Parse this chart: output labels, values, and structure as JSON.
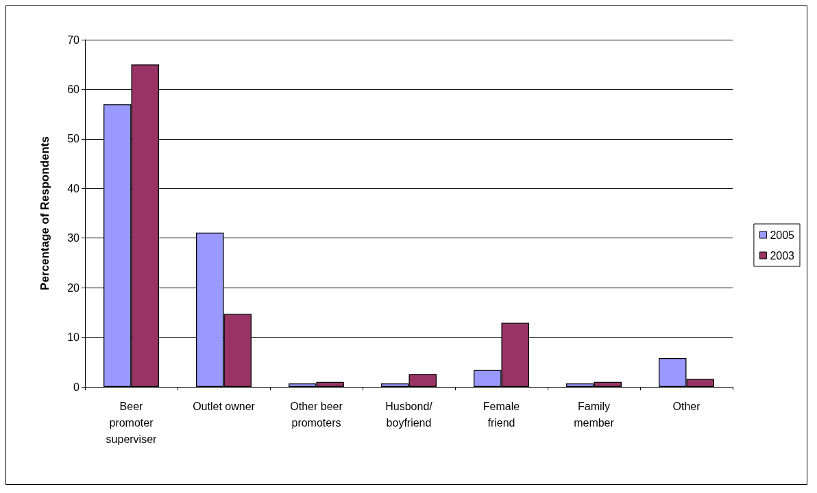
{
  "chart_data": {
    "type": "bar",
    "ylabel": "Percentage of Respondents",
    "categories": [
      "Beer\npromoter\nsuperviser",
      "Outlet owner",
      "Other beer\npromoters",
      "Husbond/\nboyfriend",
      "Female\nfriend",
      "Family\nmember",
      "Other"
    ],
    "series": [
      {
        "name": "2005",
        "color": "#9999ff",
        "values": [
          57.0,
          31.1,
          0.7,
          0.7,
          3.4,
          0.7,
          5.8
        ]
      },
      {
        "name": "2003",
        "color": "#993366",
        "values": [
          65.0,
          14.7,
          1.0,
          2.6,
          12.9,
          1.0,
          1.6
        ]
      }
    ],
    "ylim": [
      0,
      70
    ],
    "yticks": [
      0,
      10,
      20,
      30,
      40,
      50,
      60,
      70
    ],
    "grid": "y",
    "legend": "right"
  }
}
